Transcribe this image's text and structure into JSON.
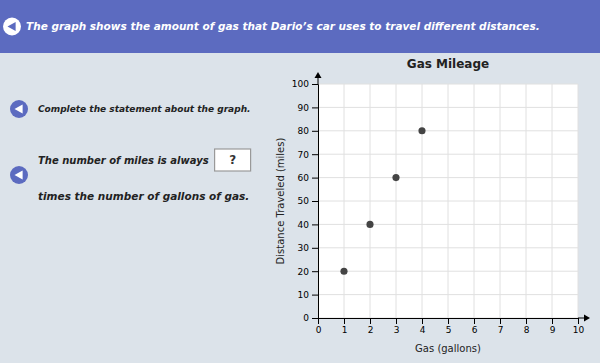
{
  "chart_data": {
    "type": "scatter",
    "title": "Gas Mileage",
    "x_label": "Gas (gallons)",
    "y_label": "Distance Traveled (miles)",
    "x": [
      1,
      2,
      3,
      4
    ],
    "values": [
      20,
      40,
      60,
      80
    ],
    "color": "#444444",
    "marker": "circle",
    "xlim": [
      0,
      10
    ],
    "ylim": [
      0,
      100
    ],
    "xticks": [
      0,
      1,
      2,
      3,
      4,
      5,
      6,
      7,
      8,
      9,
      10
    ],
    "yticks": [
      0,
      10,
      20,
      30,
      40,
      50,
      60,
      70,
      80,
      90,
      100
    ],
    "grid": true,
    "annotations": [
      "The graph shows the amount of gas that Dario’s car uses to travel different distances.",
      "Complete the statement about the graph.",
      "The number of miles is always",
      "?",
      "times the number of gallons of gas."
    ]
  }
}
